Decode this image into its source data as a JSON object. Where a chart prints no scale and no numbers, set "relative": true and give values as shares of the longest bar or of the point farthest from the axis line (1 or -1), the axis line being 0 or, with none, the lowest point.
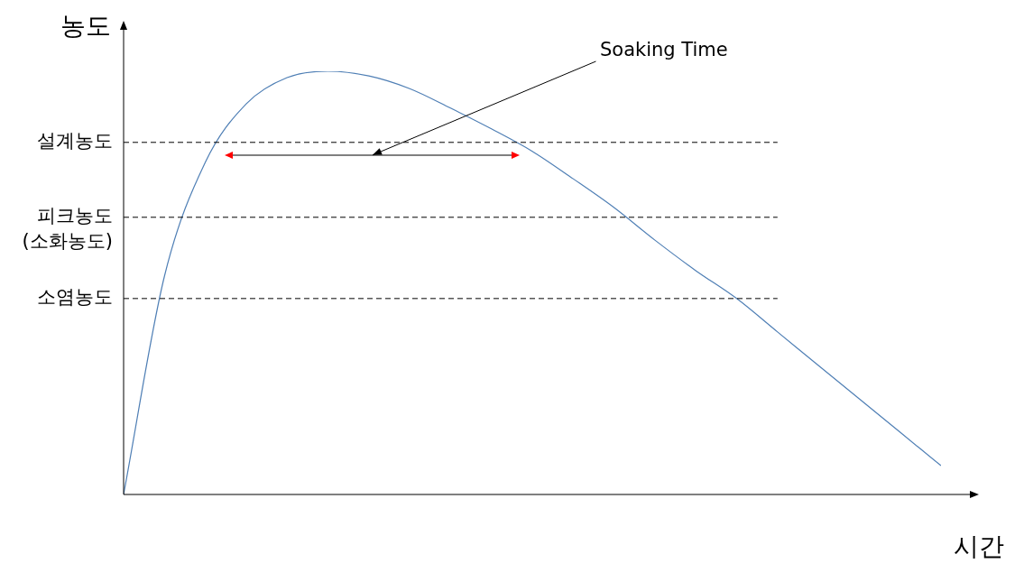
{
  "chart_data": {
    "type": "line",
    "relative": true,
    "xlabel": "시간",
    "ylabel": "농도",
    "marker": "none",
    "line_style": "solid",
    "categories": [
      null,
      null,
      null,
      null,
      null,
      null,
      null,
      null,
      null,
      null,
      null,
      null,
      null,
      null,
      null,
      null,
      null,
      null,
      null,
      null,
      null
    ],
    "series": [
      {
        "color": "#4f7fb5",
        "values": [
          0,
          0.516,
          0.785,
          0.923,
          0.985,
          1,
          0.989,
          0.959,
          0.913,
          0.864,
          0.811,
          0.746,
          0.678,
          0.601,
          0.529,
          0.463,
          0.384,
          0.305,
          0.226,
          0.147,
          0.068
        ]
      }
    ],
    "ref_lines": [
      {
        "axis": "y",
        "value": 0.832,
        "label": "설계농도",
        "line_style": "dashed",
        "color": "#000000"
      },
      {
        "axis": "y",
        "value": 0.655,
        "label": "피크농도\n(소화농도)",
        "line_style": "dashed",
        "color": "#000000"
      },
      {
        "axis": "y",
        "value": 0.463,
        "label": "소염농도",
        "line_style": "dashed",
        "color": "#000000"
      }
    ],
    "annotations": [
      "Soaking Time"
    ]
  }
}
